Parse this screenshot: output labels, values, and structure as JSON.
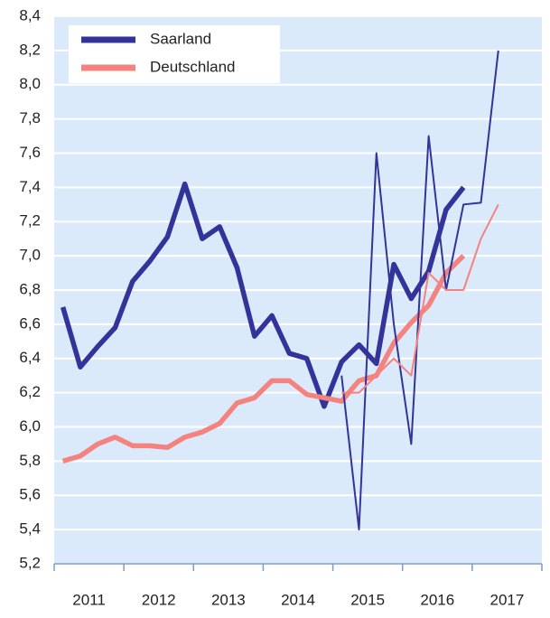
{
  "chart_data": {
    "type": "line",
    "x": [
      2011.125,
      2011.375,
      2011.625,
      2011.875,
      2012.125,
      2012.375,
      2012.625,
      2012.875,
      2013.125,
      2013.375,
      2013.625,
      2013.875,
      2014.125,
      2014.375,
      2014.625,
      2014.875,
      2015.125,
      2015.375,
      2015.625,
      2015.875,
      2016.125,
      2016.375,
      2016.625,
      2016.875,
      2017.125,
      2017.375
    ],
    "series": [
      {
        "name": "Saarland",
        "color": "#333399",
        "line_width": 5.5,
        "values": [
          6.7,
          6.35,
          6.47,
          6.58,
          6.85,
          6.97,
          7.11,
          7.42,
          7.1,
          7.17,
          6.93,
          6.53,
          6.65,
          6.43,
          6.4,
          6.12,
          6.38,
          6.48,
          6.37,
          6.95,
          6.75,
          6.91,
          7.27,
          7.4,
          null,
          null
        ]
      },
      {
        "name": "Deutschland",
        "color": "#f4827e",
        "line_width": 5.5,
        "values": [
          5.8,
          5.83,
          5.9,
          5.94,
          5.89,
          5.89,
          5.88,
          5.94,
          5.97,
          6.02,
          6.14,
          6.17,
          6.27,
          6.27,
          6.19,
          6.17,
          6.15,
          6.27,
          6.3,
          6.49,
          6.61,
          6.71,
          6.9,
          7.0,
          null,
          null
        ]
      },
      {
        "color": "#333399",
        "line_width": 2,
        "values": [
          null,
          null,
          null,
          null,
          null,
          null,
          null,
          null,
          null,
          null,
          null,
          null,
          null,
          null,
          null,
          null,
          6.3,
          5.4,
          7.6,
          6.6,
          5.9,
          7.7,
          6.8,
          7.3,
          7.31,
          8.2
        ]
      },
      {
        "color": "#f4827e",
        "line_width": 2,
        "values": [
          null,
          null,
          null,
          null,
          null,
          null,
          null,
          null,
          null,
          null,
          null,
          null,
          null,
          null,
          null,
          null,
          6.2,
          6.2,
          6.3,
          6.4,
          6.3,
          6.9,
          6.8,
          6.8,
          7.1,
          7.3
        ]
      }
    ],
    "xlim": [
      2011,
      2018
    ],
    "xticks": [
      2011,
      2012,
      2013,
      2014,
      2015,
      2016,
      2017
    ],
    "ylim": [
      5.2,
      8.4
    ],
    "yticks": [
      {
        "value": 5.2,
        "label": "5,2"
      },
      {
        "value": 5.4,
        "label": "5,4"
      },
      {
        "value": 5.6,
        "label": "5,6"
      },
      {
        "value": 5.8,
        "label": "5,8"
      },
      {
        "value": 6.0,
        "label": "6,0"
      },
      {
        "value": 6.2,
        "label": "6,2"
      },
      {
        "value": 6.4,
        "label": "6,4"
      },
      {
        "value": 6.6,
        "label": "6,6"
      },
      {
        "value": 6.8,
        "label": "6,8"
      },
      {
        "value": 7.0,
        "label": "7,0"
      },
      {
        "value": 7.2,
        "label": "7,2"
      },
      {
        "value": 7.4,
        "label": "7,4"
      },
      {
        "value": 7.6,
        "label": "7,6"
      },
      {
        "value": 7.8,
        "label": "7,8"
      },
      {
        "value": 8.0,
        "label": "8,0"
      },
      {
        "value": 8.2,
        "label": "8,2"
      },
      {
        "value": 8.4,
        "label": "8,4"
      }
    ],
    "grid": true,
    "background": "#dbeafb",
    "legend": "upper left"
  }
}
